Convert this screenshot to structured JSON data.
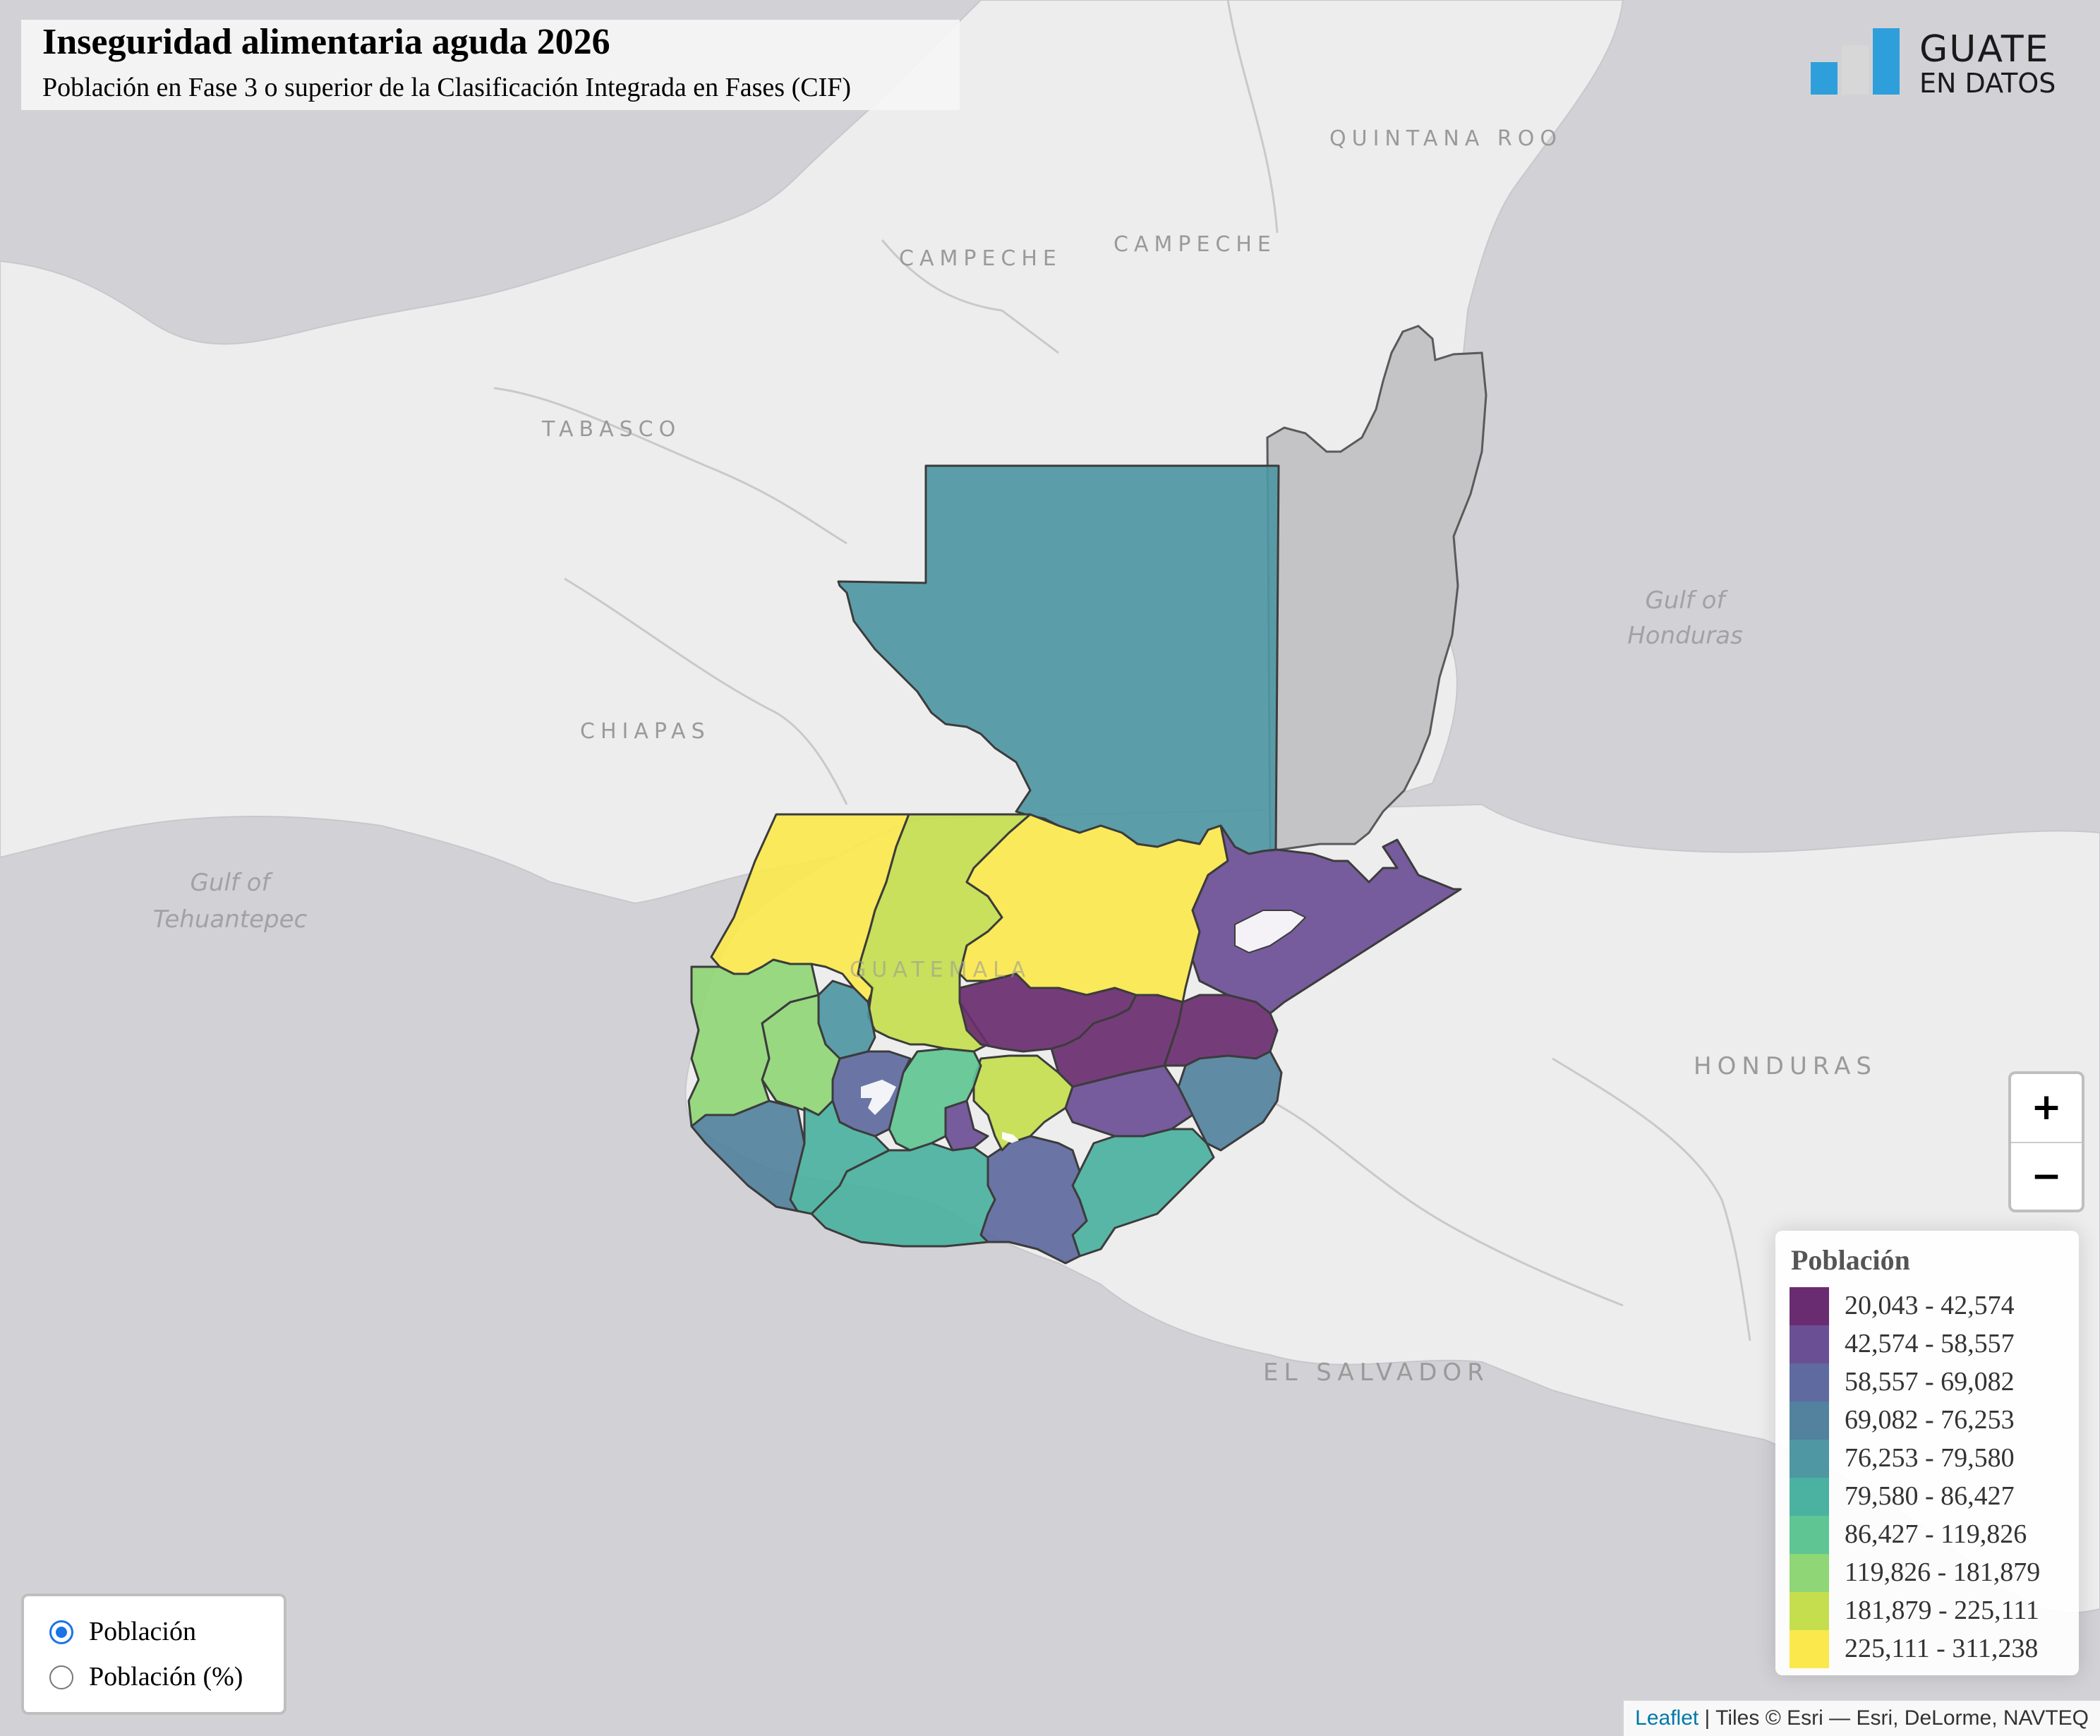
{
  "title": "Inseguridad alimentaria aguda 2026",
  "subtitle": "Población en Fase 3 o superior de la Clasificación Integrada en Fases (CIF)",
  "logo": {
    "line1": "GUATE",
    "line2": "EN DATOS"
  },
  "basemap_labels": {
    "quintana_roo": "QUINTANA ROO",
    "campeche_1": "CAMPECHE",
    "campeche_2": "CAMPECHE",
    "tabasco": "TABASCO",
    "chiapas": "CHIAPAS",
    "guatemala": "GUATEMALA",
    "honduras": "HONDURAS",
    "el_salvador": "EL SALVADOR",
    "gulf_honduras_1": "Gulf of",
    "gulf_honduras_2": "Honduras",
    "gulf_tehuantepec_1": "Gulf of",
    "gulf_tehuantepec_2": "Tehuantepec"
  },
  "zoom": {
    "in": "+",
    "out": "−"
  },
  "legend": {
    "title": "Población",
    "items": [
      {
        "label": "20,043 - 42,574",
        "color": "#6a2c70"
      },
      {
        "label": "42,574 - 58,557",
        "color": "#6b4f95"
      },
      {
        "label": "58,557 - 69,082",
        "color": "#5e6aa0"
      },
      {
        "label": "69,082 - 76,253",
        "color": "#52829e"
      },
      {
        "label": "76,253 - 79,580",
        "color": "#4e97a3"
      },
      {
        "label": "79,580 - 86,427",
        "color": "#4bb1a0"
      },
      {
        "label": "86,427 - 119,826",
        "color": "#5fc593"
      },
      {
        "label": "119,826 - 181,879",
        "color": "#8fd677"
      },
      {
        "label": "181,879 - 225,111",
        "color": "#c4de4e"
      },
      {
        "label": "225,111 - 311,238",
        "color": "#fbe84d"
      }
    ]
  },
  "layers": {
    "options": [
      {
        "label": "Población",
        "selected": true
      },
      {
        "label": "Población (%)",
        "selected": false
      }
    ]
  },
  "attribution": {
    "leaflet": "Leaflet",
    "text": " | Tiles © Esri — Esri, DeLorme, NAVTEQ"
  },
  "colors": {
    "water": "#d2d2d6",
    "land": "#ededee",
    "belize": "#c4c4c6",
    "border": "#5a5a5a"
  }
}
